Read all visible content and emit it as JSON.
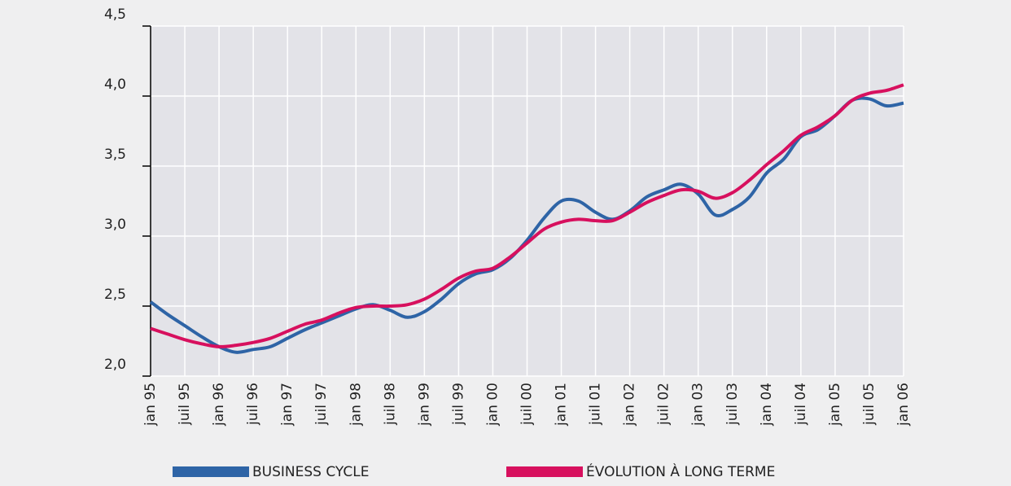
{
  "chart_data": {
    "type": "line",
    "categories": [
      "jan 95",
      null,
      "juil 95",
      null,
      "jan 96",
      null,
      "juil 96",
      null,
      "jan 97",
      null,
      "juil 97",
      null,
      "jan 98",
      null,
      "juil 98",
      null,
      "jan 99",
      null,
      "juil 99",
      null,
      "jan 00",
      null,
      "juil 00",
      null,
      "jan 01",
      null,
      "juil 01",
      null,
      "jan 02",
      null,
      "juil 02",
      null,
      "jan 03",
      null,
      "juil 03",
      null,
      "jan 04",
      null,
      "juil 04",
      null,
      "jan 05",
      null,
      "juil 05",
      null,
      "jan 06"
    ],
    "series": [
      {
        "name": "BUSINESS CYCLE",
        "color": "#2e64a6",
        "values": [
          2.53,
          2.44,
          2.36,
          2.28,
          2.21,
          2.17,
          2.19,
          2.21,
          2.27,
          2.33,
          2.38,
          2.43,
          2.48,
          2.51,
          2.47,
          2.42,
          2.46,
          2.55,
          2.66,
          2.73,
          2.76,
          2.84,
          2.97,
          3.13,
          3.25,
          3.25,
          3.17,
          3.12,
          3.18,
          3.28,
          3.33,
          3.37,
          3.3,
          3.15,
          3.19,
          3.28,
          3.45,
          3.55,
          3.71,
          3.76,
          3.86,
          3.97,
          3.98,
          3.93,
          3.95
        ]
      },
      {
        "name": "ÉVOLUTION À LONG TERME",
        "color": "#d7105e",
        "values": [
          2.34,
          2.3,
          2.26,
          2.23,
          2.21,
          2.22,
          2.24,
          2.27,
          2.32,
          2.37,
          2.4,
          2.45,
          2.49,
          2.5,
          2.5,
          2.51,
          2.55,
          2.62,
          2.7,
          2.75,
          2.77,
          2.85,
          2.95,
          3.05,
          3.1,
          3.12,
          3.11,
          3.11,
          3.17,
          3.24,
          3.29,
          3.33,
          3.32,
          3.27,
          3.31,
          3.4,
          3.51,
          3.61,
          3.72,
          3.78,
          3.86,
          3.97,
          4.02,
          4.04,
          4.08
        ]
      }
    ],
    "ylim": [
      2.0,
      4.5
    ],
    "yticks": [
      {
        "value": 2.0,
        "label": "2,0"
      },
      {
        "value": 2.5,
        "label": "2,5"
      },
      {
        "value": 3.0,
        "label": "3,0"
      },
      {
        "value": 3.5,
        "label": "3,5"
      },
      {
        "value": 4.0,
        "label": "4,0"
      },
      {
        "value": 4.5,
        "label": "4,5"
      }
    ],
    "grid": true
  }
}
